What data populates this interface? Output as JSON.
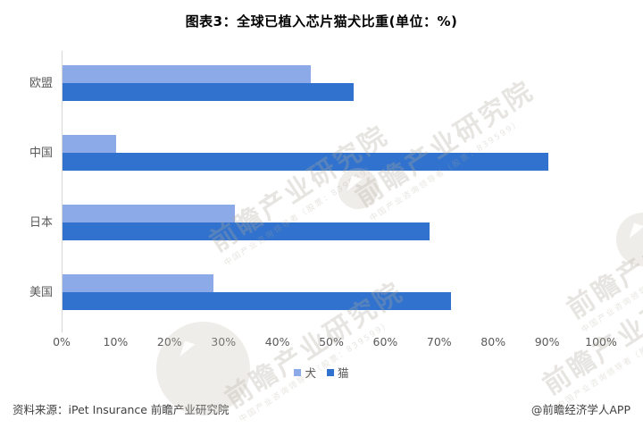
{
  "title": "图表3：全球已植入芯片猫犬比重(单位：%)",
  "chart_data": {
    "type": "bar",
    "orientation": "horizontal",
    "title": "图表3：全球已植入芯片猫犬比重(单位：%)",
    "unit": "%",
    "categories": [
      "欧盟",
      "中国",
      "日本",
      "美国"
    ],
    "category_keys": [
      "eu",
      "china",
      "japan",
      "usa"
    ],
    "series": [
      {
        "name": "犬",
        "key": "dog",
        "color": "#8CA9E8",
        "values": [
          46,
          10,
          32,
          28
        ]
      },
      {
        "name": "猫",
        "key": "cat",
        "color": "#3072CD",
        "values": [
          54,
          90,
          68,
          72
        ]
      }
    ],
    "xlim": [
      0,
      100
    ],
    "x_ticks": [
      "0%",
      "10%",
      "20%",
      "30%",
      "40%",
      "50%",
      "60%",
      "70%",
      "80%",
      "90%",
      "100%"
    ],
    "grid": false,
    "legend_position": "bottom"
  },
  "footer": {
    "source": "资料来源：iPet Insurance 前瞻产业研究院",
    "credit": "@前瞻经济学人APP"
  },
  "watermark": {
    "text": "前瞻产业研究院",
    "subtext": "中国产业咨询领导者（股票：839599）"
  },
  "colors": {
    "dog_bar": "#8CA9E8",
    "cat_bar": "#3072CD",
    "axis_line": "#D6D6D6",
    "tick_text": "#595959",
    "title_text": "#000000",
    "footer_text": "#3F3F3F"
  }
}
